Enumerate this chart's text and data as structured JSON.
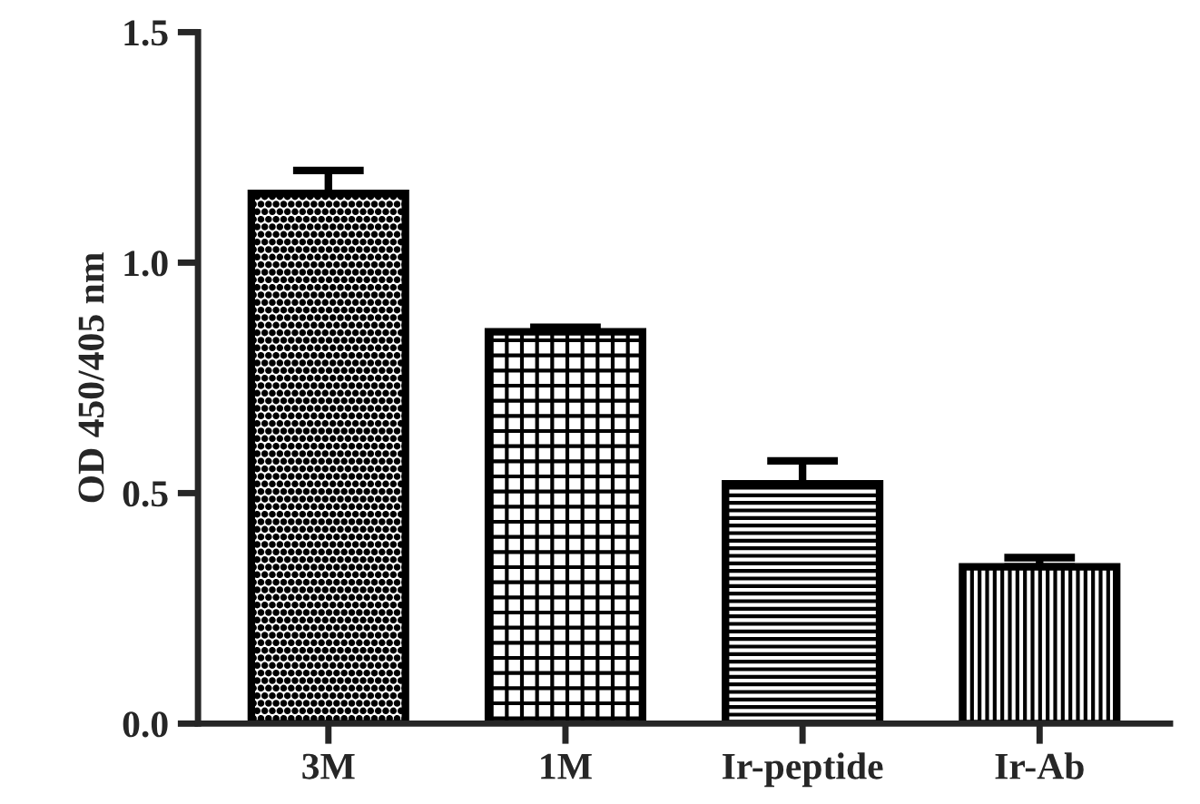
{
  "chart_data": {
    "type": "bar",
    "ylabel": "OD 450/405 nm",
    "categories": [
      "3M",
      "1M",
      "Ir-peptide",
      "Ir-Ab"
    ],
    "values": [
      1.15,
      0.85,
      0.52,
      0.34
    ],
    "errors": [
      [
        1.15,
        1.2
      ],
      [
        0.85,
        0.86
      ],
      [
        0.52,
        0.57
      ],
      [
        0.34,
        0.36
      ]
    ],
    "color": "#000000",
    "ylim": [
      0,
      1.5
    ],
    "yticks": [
      {
        "value": 0,
        "label": "0.0"
      },
      0.5,
      {
        "value": 1,
        "label": "1.0"
      },
      1.5
    ],
    "grid": false,
    "legend": false
  }
}
